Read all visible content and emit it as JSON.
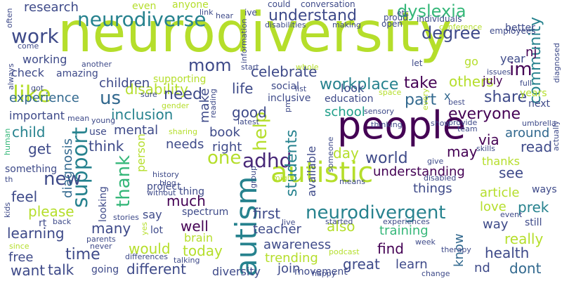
{
  "palette": {
    "background": "#ffffff",
    "dark_purple": "#440154",
    "deep_indigo": "#482878",
    "indigo": "#3e4a89",
    "blue": "#31688e",
    "teal_blue": "#26828e",
    "teal": "#1f9e89",
    "green": "#35b779",
    "light_green": "#6ece58",
    "lime": "#b5de2b",
    "yellow": "#fde725"
  },
  "words": [
    {
      "text": "neurodiversity",
      "color": "#b5de2b"
    },
    {
      "text": "people",
      "color": "#440154"
    },
    {
      "text": "autistic",
      "color": "#b5de2b"
    },
    {
      "text": "autism",
      "color": "#26828e"
    },
    {
      "text": "neurodiverse",
      "color": "#26828e"
    },
    {
      "text": "neurodivergent",
      "color": "#26828e"
    },
    {
      "text": "adhd",
      "color": "#482878"
    },
    {
      "text": "like",
      "color": "#b5de2b"
    },
    {
      "text": "work",
      "color": "#3e4a89"
    },
    {
      "text": "support",
      "color": "#26828e"
    },
    {
      "text": "understand",
      "color": "#3e4a89"
    },
    {
      "text": "dyslexia",
      "color": "#35b779"
    },
    {
      "text": "one",
      "color": "#b5de2b"
    },
    {
      "text": "us",
      "color": "#31688e"
    },
    {
      "text": "mom",
      "color": "#3e4a89"
    },
    {
      "text": "degree",
      "color": "#3e4a89"
    },
    {
      "text": "disability",
      "color": "#b5de2b"
    },
    {
      "text": "workplace",
      "color": "#26828e"
    },
    {
      "text": "celebrate",
      "color": "#3e4a89"
    },
    {
      "text": "children",
      "color": "#3e4a89"
    },
    {
      "text": "help",
      "color": "#b5de2b"
    },
    {
      "text": "thank",
      "color": "#35b779"
    },
    {
      "text": "world",
      "color": "#3e4a89"
    },
    {
      "text": "students",
      "color": "#26828e"
    },
    {
      "text": "new",
      "color": "#3e4a89"
    },
    {
      "text": "everyone",
      "color": "#440154"
    },
    {
      "text": "im",
      "color": "#440154"
    },
    {
      "text": "community",
      "color": "#26828e"
    },
    {
      "text": "share",
      "color": "#3e4a89"
    },
    {
      "text": "part",
      "color": "#31688e"
    },
    {
      "text": "take",
      "color": "#440154"
    },
    {
      "text": "others",
      "color": "#b5de2b"
    },
    {
      "text": "need",
      "color": "#3e4a89"
    },
    {
      "text": "inclusion",
      "color": "#26828e"
    },
    {
      "text": "experience",
      "color": "#31688e"
    },
    {
      "text": "school",
      "color": "#1f9e89"
    },
    {
      "text": "life",
      "color": "#3e4a89"
    },
    {
      "text": "good",
      "color": "#3e4a89"
    },
    {
      "text": "make",
      "color": "#3e4a89"
    },
    {
      "text": "mental",
      "color": "#3e4a89"
    },
    {
      "text": "book",
      "color": "#3e4a89"
    },
    {
      "text": "think",
      "color": "#3e4a89"
    },
    {
      "text": "get",
      "color": "#3e4a89"
    },
    {
      "text": "child",
      "color": "#26828e"
    },
    {
      "text": "diagnosis",
      "color": "#31688e"
    },
    {
      "text": "needs",
      "color": "#3e4a89"
    },
    {
      "text": "right",
      "color": "#3e4a89"
    },
    {
      "text": "day",
      "color": "#b5de2b"
    },
    {
      "text": "may",
      "color": "#440154"
    },
    {
      "text": "via",
      "color": "#440154"
    },
    {
      "text": "read",
      "color": "#3e4a89"
    },
    {
      "text": "around",
      "color": "#31688e"
    },
    {
      "text": "understanding",
      "color": "#440154"
    },
    {
      "text": "see",
      "color": "#3e4a89"
    },
    {
      "text": "thanks",
      "color": "#b5de2b"
    },
    {
      "text": "things",
      "color": "#3e4a89"
    },
    {
      "text": "article",
      "color": "#b5de2b"
    },
    {
      "text": "love",
      "color": "#b5de2b"
    },
    {
      "text": "prek",
      "color": "#26828e"
    },
    {
      "text": "feel",
      "color": "#3e4a89"
    },
    {
      "text": "please",
      "color": "#b5de2b"
    },
    {
      "text": "much",
      "color": "#440154"
    },
    {
      "text": "first",
      "color": "#3e4a89"
    },
    {
      "text": "teacher",
      "color": "#3e4a89"
    },
    {
      "text": "also",
      "color": "#b5de2b"
    },
    {
      "text": "training",
      "color": "#35b779"
    },
    {
      "text": "know",
      "color": "#31688e"
    },
    {
      "text": "way",
      "color": "#3e4a89"
    },
    {
      "text": "learning",
      "color": "#3e4a89"
    },
    {
      "text": "many",
      "color": "#3e4a89"
    },
    {
      "text": "well",
      "color": "#440154"
    },
    {
      "text": "awareness",
      "color": "#3e4a89"
    },
    {
      "text": "trending",
      "color": "#b5de2b"
    },
    {
      "text": "really",
      "color": "#b5de2b"
    },
    {
      "text": "time",
      "color": "#3e4a89"
    },
    {
      "text": "would",
      "color": "#b5de2b"
    },
    {
      "text": "today",
      "color": "#b5de2b"
    },
    {
      "text": "find",
      "color": "#440154"
    },
    {
      "text": "health",
      "color": "#3e4a89"
    },
    {
      "text": "want",
      "color": "#3e4a89"
    },
    {
      "text": "talk",
      "color": "#3e4a89"
    },
    {
      "text": "different",
      "color": "#3e4a89"
    },
    {
      "text": "great",
      "color": "#3e4a89"
    },
    {
      "text": "learn",
      "color": "#3e4a89"
    },
    {
      "text": "join",
      "color": "#3e4a89"
    },
    {
      "text": "nd",
      "color": "#3e4a89"
    },
    {
      "text": "dont",
      "color": "#31688e"
    },
    {
      "text": "free",
      "color": "#3e4a89"
    },
    {
      "text": "diversity",
      "color": "#3e4a89"
    },
    {
      "text": "research",
      "color": "#3e4a89"
    },
    {
      "text": "even",
      "color": "#b5de2b"
    },
    {
      "text": "anyone",
      "color": "#b5de2b"
    },
    {
      "text": "working",
      "color": "#3e4a89"
    },
    {
      "text": "check",
      "color": "#3e4a89"
    },
    {
      "text": "important",
      "color": "#3e4a89"
    },
    {
      "text": "year",
      "color": "#3e4a89"
    },
    {
      "text": "nj",
      "color": "#440154"
    },
    {
      "text": "july",
      "color": "#440154"
    },
    {
      "text": "look",
      "color": "#3e4a89"
    },
    {
      "text": "better",
      "color": "#3e4a89"
    },
    {
      "text": "years",
      "color": "#b5de2b"
    },
    {
      "text": "next",
      "color": "#3e4a89"
    },
    {
      "text": "person",
      "color": "#b5de2b"
    },
    {
      "text": "available",
      "color": "#3e4a89"
    },
    {
      "text": "ways",
      "color": "#3e4a89"
    },
    {
      "text": "still",
      "color": "#3e4a89"
    },
    {
      "text": "looking",
      "color": "#3e4a89"
    },
    {
      "text": "say",
      "color": "#3e4a89"
    },
    {
      "text": "brain",
      "color": "#b5de2b"
    },
    {
      "text": "lot",
      "color": "#3e4a89"
    },
    {
      "text": "project",
      "color": "#3e4a89"
    },
    {
      "text": "something",
      "color": "#3e4a89"
    },
    {
      "text": "amazing",
      "color": "#3e4a89"
    },
    {
      "text": "supporting",
      "color": "#b5de2b"
    },
    {
      "text": "social",
      "color": "#3e4a89"
    },
    {
      "text": "inclusive",
      "color": "#3e4a89"
    },
    {
      "text": "education",
      "color": "#3e4a89"
    },
    {
      "text": "go",
      "color": "#b5de2b"
    },
    {
      "text": "x",
      "color": "#31688e"
    },
    {
      "text": "let",
      "color": "#3e4a89"
    },
    {
      "text": "open",
      "color": "#3e4a89"
    },
    {
      "text": "conversation",
      "color": "#3e4a89"
    },
    {
      "text": "could",
      "color": "#3e4a89"
    },
    {
      "text": "ive",
      "color": "#3e4a89"
    },
    {
      "text": "etc",
      "color": "#3e4a89"
    },
    {
      "text": "proud",
      "color": "#3e4a89"
    },
    {
      "text": "individuals",
      "color": "#3e4a89"
    },
    {
      "text": "conference",
      "color": "#b5de2b"
    },
    {
      "text": "employees",
      "color": "#3e4a89"
    },
    {
      "text": "diagnosed",
      "color": "#3e4a89"
    },
    {
      "text": "issues",
      "color": "#3e4a89"
    },
    {
      "text": "full",
      "color": "#3e4a89"
    },
    {
      "text": "disabilities",
      "color": "#3e4a89"
    },
    {
      "text": "making",
      "color": "#3e4a89"
    },
    {
      "text": "link",
      "color": "#3e4a89"
    },
    {
      "text": "hear",
      "color": "#3e4a89"
    },
    {
      "text": "information",
      "color": "#3e4a89"
    },
    {
      "text": "start",
      "color": "#3e4a89"
    },
    {
      "text": "whole",
      "color": "#b5de2b"
    },
    {
      "text": "another",
      "color": "#3e4a89"
    },
    {
      "text": "always",
      "color": "#3e4a89"
    },
    {
      "text": "got",
      "color": "#3e4a89"
    },
    {
      "text": "come",
      "color": "#3e4a89"
    },
    {
      "text": "often",
      "color": "#3e4a89"
    },
    {
      "text": "sure",
      "color": "#3e4a89"
    },
    {
      "text": "gender",
      "color": "#b5de2b"
    },
    {
      "text": "mean",
      "color": "#3e4a89"
    },
    {
      "text": "young",
      "color": "#3e4a89"
    },
    {
      "text": "reading",
      "color": "#3e4a89"
    },
    {
      "text": "latest",
      "color": "#3e4a89"
    },
    {
      "text": "pm",
      "color": "#3e4a89"
    },
    {
      "text": "list",
      "color": "#3e4a89"
    },
    {
      "text": "space",
      "color": "#b5de2b"
    },
    {
      "text": "sensory",
      "color": "#3e4a89"
    },
    {
      "text": "best",
      "color": "#3e4a89"
    },
    {
      "text": "every",
      "color": "#b5de2b"
    },
    {
      "text": "team",
      "color": "#3e4a89"
    },
    {
      "text": "umbrella",
      "color": "#3e4a89"
    },
    {
      "text": "actually",
      "color": "#3e4a89"
    },
    {
      "text": "provide",
      "color": "#3e4a89"
    },
    {
      "text": "show",
      "color": "#3e4a89"
    },
    {
      "text": "thinking",
      "color": "#3e4a89"
    },
    {
      "text": "skills",
      "color": "#3e4a89"
    },
    {
      "text": "give",
      "color": "#3e4a89"
    },
    {
      "text": "disabled",
      "color": "#3e4a89"
    },
    {
      "text": "might",
      "color": "#b5de2b"
    },
    {
      "text": "means",
      "color": "#3e4a89"
    },
    {
      "text": "group",
      "color": "#3e4a89"
    },
    {
      "text": "someone",
      "color": "#3e4a89"
    },
    {
      "text": "sharing",
      "color": "#b5de2b"
    },
    {
      "text": "use",
      "color": "#3e4a89"
    },
    {
      "text": "history",
      "color": "#3e4a89"
    },
    {
      "text": "blog",
      "color": "#3e4a89"
    },
    {
      "text": "without",
      "color": "#3e4a89"
    },
    {
      "text": "thing",
      "color": "#3e4a89"
    },
    {
      "text": "spectrum",
      "color": "#3e4a89"
    },
    {
      "text": "stories",
      "color": "#3e4a89"
    },
    {
      "text": "yes",
      "color": "#b5de2b"
    },
    {
      "text": "parents",
      "color": "#3e4a89"
    },
    {
      "text": "never",
      "color": "#3e4a89"
    },
    {
      "text": "differences",
      "color": "#3e4a89"
    },
    {
      "text": "talking",
      "color": "#3e4a89"
    },
    {
      "text": "going",
      "color": "#3e4a89"
    },
    {
      "text": "movement",
      "color": "#3e4a89"
    },
    {
      "text": "happy",
      "color": "#3e4a89"
    },
    {
      "text": "podcast",
      "color": "#b5de2b"
    },
    {
      "text": "week",
      "color": "#3e4a89"
    },
    {
      "text": "therapy",
      "color": "#3e4a89"
    },
    {
      "text": "change",
      "color": "#3e4a89"
    },
    {
      "text": "event",
      "color": "#3e4a89"
    },
    {
      "text": "live",
      "color": "#3e4a89"
    },
    {
      "text": "started",
      "color": "#3e4a89"
    },
    {
      "text": "experiences",
      "color": "#3e4a89"
    },
    {
      "text": "kids",
      "color": "#3e4a89"
    },
    {
      "text": "since",
      "color": "#b5de2b"
    },
    {
      "text": "th",
      "color": "#3e4a89"
    },
    {
      "text": "rt",
      "color": "#3e4a89"
    },
    {
      "text": "back",
      "color": "#3e4a89"
    },
    {
      "text": "human",
      "color": "#35b779"
    }
  ]
}
